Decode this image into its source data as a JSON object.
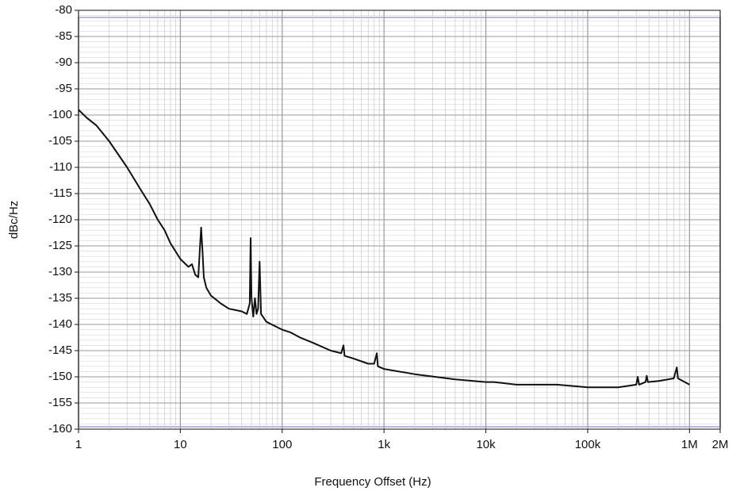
{
  "chart_data": {
    "type": "line",
    "xlabel": "Frequency Offset (Hz)",
    "ylabel": "dBc/Hz",
    "xscale": "log",
    "grid": true,
    "minor_grid": true,
    "xlim": [
      1,
      2000000
    ],
    "ylim": [
      -160,
      -80
    ],
    "xticks": [
      1,
      10,
      100,
      {
        "value": 1000,
        "label": "1k"
      },
      {
        "value": 10000,
        "label": "10k"
      },
      {
        "value": 100000,
        "label": "100k"
      },
      {
        "value": 1000000,
        "label": "1M"
      },
      {
        "value": 2000000,
        "label": "2M"
      }
    ],
    "yticks": [
      -80,
      -85,
      -90,
      -95,
      -100,
      -105,
      -110,
      -115,
      -120,
      -125,
      -130,
      -135,
      -140,
      -145,
      -150,
      -155,
      -160
    ],
    "series": [
      {
        "color": "#111111",
        "x": [
          1,
          1.2,
          1.5,
          2,
          3,
          4,
          5,
          6,
          7,
          8,
          10,
          12,
          13,
          14,
          15,
          15.5,
          16,
          16.5,
          17,
          18,
          20,
          25,
          30,
          40,
          45,
          48,
          49,
          50,
          52,
          54,
          56,
          58,
          60,
          62,
          70,
          100,
          120,
          150,
          200,
          300,
          380,
          400,
          410,
          500,
          700,
          800,
          850,
          870,
          1000,
          2000,
          5000,
          10000,
          12000,
          20000,
          50000,
          100000,
          200000,
          300000,
          310000,
          320000,
          370000,
          380000,
          390000,
          500000,
          700000,
          750000,
          770000,
          1000000
        ],
        "values": [
          -99,
          -100.5,
          -102,
          -105,
          -110,
          -114,
          -117,
          -120,
          -122,
          -124.5,
          -127.5,
          -129,
          -128.5,
          -130.5,
          -131,
          -126,
          -121.5,
          -126,
          -131,
          -133,
          -134.5,
          -136,
          -137,
          -137.5,
          -138,
          -136,
          -123.5,
          -135,
          -138.5,
          -135,
          -138,
          -137,
          -128,
          -138,
          -139.5,
          -141,
          -141.5,
          -142.5,
          -143.5,
          -145,
          -145.5,
          -144,
          -146,
          -146.5,
          -147.5,
          -147.5,
          -145.5,
          -148,
          -148.5,
          -149.5,
          -150.5,
          -151,
          -151,
          -151.5,
          -151.5,
          -152,
          -152,
          -151.5,
          -150,
          -151.5,
          -151,
          -149.8,
          -151,
          -150.8,
          -150.3,
          -148.2,
          -150.3,
          -151.5
        ]
      }
    ]
  }
}
